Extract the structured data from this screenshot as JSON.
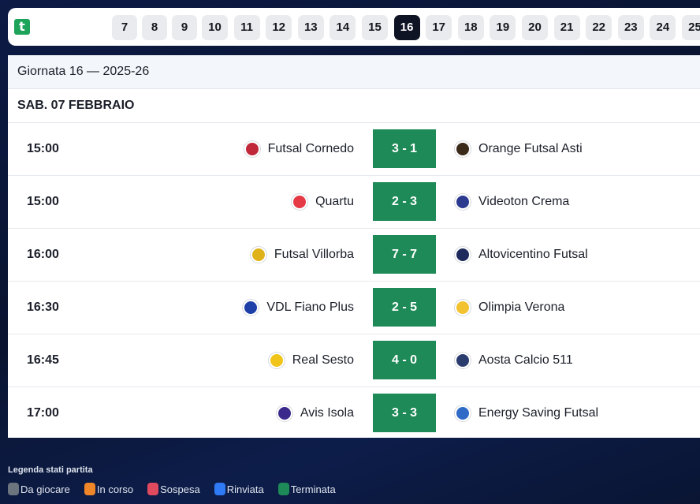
{
  "rounds": [
    {
      "label": "7"
    },
    {
      "label": "8"
    },
    {
      "label": "9"
    },
    {
      "label": "10"
    },
    {
      "label": "11"
    },
    {
      "label": "12"
    },
    {
      "label": "13"
    },
    {
      "label": "14"
    },
    {
      "label": "15"
    },
    {
      "label": "16",
      "active": true
    },
    {
      "label": "17"
    },
    {
      "label": "18"
    },
    {
      "label": "19"
    },
    {
      "label": "20"
    },
    {
      "label": "21"
    },
    {
      "label": "22"
    },
    {
      "label": "23"
    },
    {
      "label": "24"
    },
    {
      "label": "25"
    }
  ],
  "panel": {
    "title": "Giornata 16 — 2025-26",
    "date": "SAB. 07 FEBBRAIO"
  },
  "matches": [
    {
      "time": "15:00",
      "home": "Futsal Cornedo",
      "score": "3 - 1",
      "away": "Orange Futsal Asti",
      "home_color": "#c0283a",
      "away_color": "#3a2a1a"
    },
    {
      "time": "15:00",
      "home": "Quartu",
      "score": "2 - 3",
      "away": "Videoton Crema",
      "home_color": "#e63946",
      "away_color": "#2b3a8f"
    },
    {
      "time": "16:00",
      "home": "Futsal Villorba",
      "score": "7 - 7",
      "away": "Altovicentino Futsal",
      "home_color": "#e0b21a",
      "away_color": "#1d2a5c"
    },
    {
      "time": "16:30",
      "home": "VDL Fiano Plus",
      "score": "2 - 5",
      "away": "Olimpia Verona",
      "home_color": "#1f3fa8",
      "away_color": "#f2c230"
    },
    {
      "time": "16:45",
      "home": "Real Sesto",
      "score": "4 - 0",
      "away": "Aosta Calcio 511",
      "home_color": "#f0c419",
      "away_color": "#2a3b6e"
    },
    {
      "time": "17:00",
      "home": "Avis Isola",
      "score": "3 - 3",
      "away": "Energy Saving Futsal",
      "home_color": "#3b2a8c",
      "away_color": "#2f6ac7"
    }
  ],
  "legend": {
    "title": "Legenda stati partita",
    "items": [
      {
        "label": "Da giocare",
        "color": "#6c757d"
      },
      {
        "label": "In corso",
        "color": "#f0862a"
      },
      {
        "label": "Sospesa",
        "color": "#e04a5f"
      },
      {
        "label": "Rinviata",
        "color": "#2f7bf5"
      },
      {
        "label": "Terminata",
        "color": "#1e8a57"
      }
    ]
  }
}
